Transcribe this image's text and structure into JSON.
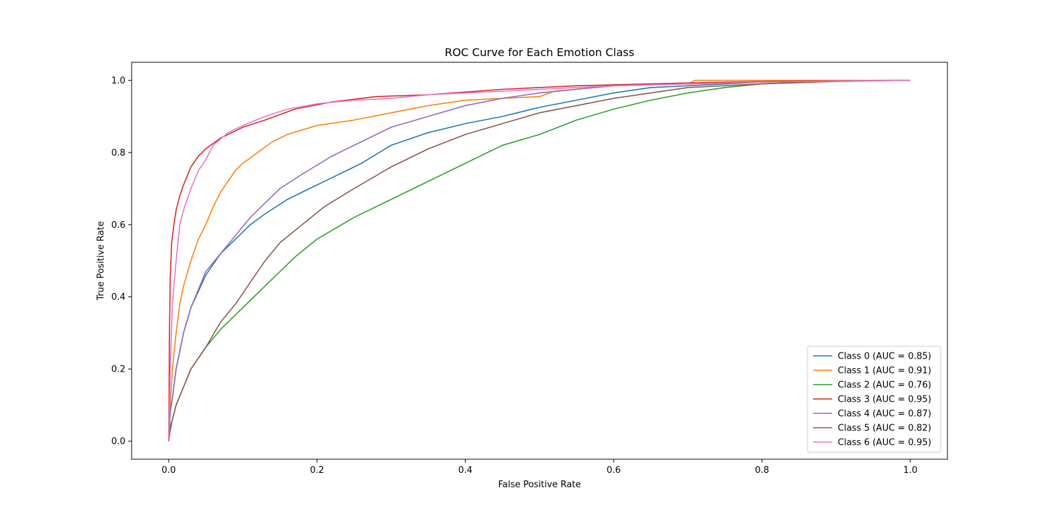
{
  "chart_data": {
    "type": "line",
    "title": "ROC Curve for Each Emotion Class",
    "xlabel": "False Positive Rate",
    "ylabel": "True Positive Rate",
    "xlim": [
      -0.05,
      1.05
    ],
    "ylim": [
      -0.05,
      1.05
    ],
    "xticks": [
      0.0,
      0.2,
      0.4,
      0.6,
      0.8,
      1.0
    ],
    "xtick_labels": [
      "0.0",
      "0.2",
      "0.4",
      "0.6",
      "0.8",
      "1.0"
    ],
    "yticks": [
      0.0,
      0.2,
      0.4,
      0.6,
      0.8,
      1.0
    ],
    "ytick_labels": [
      "0.0",
      "0.2",
      "0.4",
      "0.6",
      "0.8",
      "1.0"
    ],
    "grid": false,
    "legend_position": "lower-right",
    "series": [
      {
        "name": "Class 0 (AUC = 0.85)",
        "color": "#1f77b4",
        "x": [
          0.0,
          0.002,
          0.005,
          0.01,
          0.02,
          0.03,
          0.05,
          0.07,
          0.09,
          0.11,
          0.13,
          0.16,
          0.19,
          0.22,
          0.26,
          0.3,
          0.35,
          0.4,
          0.45,
          0.5,
          0.55,
          0.6,
          0.65,
          0.7,
          0.8,
          0.9,
          1.0
        ],
        "y": [
          0.0,
          0.08,
          0.12,
          0.2,
          0.3,
          0.37,
          0.46,
          0.52,
          0.56,
          0.6,
          0.63,
          0.67,
          0.7,
          0.73,
          0.77,
          0.82,
          0.855,
          0.88,
          0.9,
          0.925,
          0.945,
          0.965,
          0.98,
          0.985,
          0.995,
          0.998,
          1.0
        ]
      },
      {
        "name": "Class 1 (AUC = 0.91)",
        "color": "#ff7f0e",
        "x": [
          0.0,
          0.002,
          0.005,
          0.01,
          0.015,
          0.02,
          0.03,
          0.04,
          0.05,
          0.06,
          0.07,
          0.08,
          0.09,
          0.1,
          0.12,
          0.14,
          0.16,
          0.2,
          0.25,
          0.3,
          0.35,
          0.4,
          0.5,
          0.52,
          0.6,
          0.7,
          0.71,
          0.8,
          1.0
        ],
        "y": [
          0.0,
          0.1,
          0.2,
          0.3,
          0.38,
          0.43,
          0.5,
          0.56,
          0.6,
          0.65,
          0.69,
          0.72,
          0.75,
          0.77,
          0.8,
          0.83,
          0.85,
          0.875,
          0.89,
          0.91,
          0.93,
          0.945,
          0.955,
          0.97,
          0.985,
          0.99,
          1.0,
          1.0,
          1.0
        ]
      },
      {
        "name": "Class 2 (AUC = 0.76)",
        "color": "#2ca02c",
        "x": [
          0.0,
          0.002,
          0.005,
          0.01,
          0.02,
          0.03,
          0.05,
          0.07,
          0.09,
          0.11,
          0.14,
          0.17,
          0.2,
          0.25,
          0.3,
          0.35,
          0.4,
          0.45,
          0.5,
          0.55,
          0.6,
          0.65,
          0.7,
          0.75,
          0.8,
          0.85,
          0.9,
          1.0
        ],
        "y": [
          0.0,
          0.04,
          0.06,
          0.1,
          0.15,
          0.2,
          0.26,
          0.31,
          0.35,
          0.39,
          0.45,
          0.51,
          0.56,
          0.62,
          0.67,
          0.72,
          0.77,
          0.82,
          0.85,
          0.89,
          0.92,
          0.945,
          0.965,
          0.98,
          0.99,
          0.995,
          0.998,
          1.0
        ]
      },
      {
        "name": "Class 3 (AUC = 0.95)",
        "color": "#d62728",
        "x": [
          0.0,
          0.001,
          0.002,
          0.004,
          0.007,
          0.01,
          0.015,
          0.02,
          0.03,
          0.04,
          0.05,
          0.07,
          0.1,
          0.13,
          0.17,
          0.22,
          0.28,
          0.35,
          0.45,
          0.55,
          0.65,
          0.75,
          0.85,
          1.0
        ],
        "y": [
          0.0,
          0.3,
          0.45,
          0.55,
          0.6,
          0.64,
          0.68,
          0.71,
          0.76,
          0.79,
          0.81,
          0.84,
          0.87,
          0.89,
          0.92,
          0.94,
          0.955,
          0.96,
          0.975,
          0.985,
          0.99,
          0.995,
          0.998,
          1.0
        ]
      },
      {
        "name": "Class 4 (AUC = 0.87)",
        "color": "#9467bd",
        "x": [
          0.0,
          0.002,
          0.005,
          0.01,
          0.02,
          0.03,
          0.05,
          0.07,
          0.09,
          0.11,
          0.13,
          0.15,
          0.18,
          0.22,
          0.26,
          0.3,
          0.35,
          0.4,
          0.45,
          0.5,
          0.55,
          0.6,
          0.7,
          0.8,
          0.9,
          1.0
        ],
        "y": [
          0.0,
          0.08,
          0.12,
          0.2,
          0.3,
          0.37,
          0.47,
          0.52,
          0.57,
          0.62,
          0.66,
          0.7,
          0.74,
          0.79,
          0.83,
          0.87,
          0.9,
          0.93,
          0.95,
          0.965,
          0.975,
          0.985,
          0.99,
          0.995,
          0.998,
          1.0
        ]
      },
      {
        "name": "Class 5 (AUC = 0.82)",
        "color": "#8c564b",
        "x": [
          0.0,
          0.002,
          0.005,
          0.01,
          0.02,
          0.03,
          0.05,
          0.07,
          0.09,
          0.11,
          0.13,
          0.15,
          0.18,
          0.21,
          0.25,
          0.3,
          0.35,
          0.4,
          0.45,
          0.5,
          0.55,
          0.6,
          0.65,
          0.7,
          0.8,
          0.9,
          1.0
        ],
        "y": [
          0.0,
          0.03,
          0.06,
          0.1,
          0.15,
          0.2,
          0.26,
          0.33,
          0.38,
          0.44,
          0.5,
          0.55,
          0.6,
          0.65,
          0.7,
          0.76,
          0.81,
          0.85,
          0.88,
          0.91,
          0.93,
          0.95,
          0.965,
          0.98,
          0.99,
          0.997,
          1.0
        ]
      },
      {
        "name": "Class 6 (AUC = 0.95)",
        "color": "#e377c2",
        "x": [
          0.0,
          0.002,
          0.005,
          0.01,
          0.015,
          0.02,
          0.03,
          0.04,
          0.05,
          0.06,
          0.08,
          0.1,
          0.13,
          0.16,
          0.2,
          0.25,
          0.3,
          0.35,
          0.4,
          0.5,
          0.6,
          0.7,
          0.8,
          0.9,
          1.0
        ],
        "y": [
          0.0,
          0.2,
          0.38,
          0.5,
          0.6,
          0.64,
          0.7,
          0.75,
          0.78,
          0.82,
          0.855,
          0.875,
          0.9,
          0.92,
          0.935,
          0.945,
          0.95,
          0.96,
          0.965,
          0.975,
          0.985,
          0.99,
          0.995,
          0.998,
          1.0
        ]
      }
    ]
  }
}
